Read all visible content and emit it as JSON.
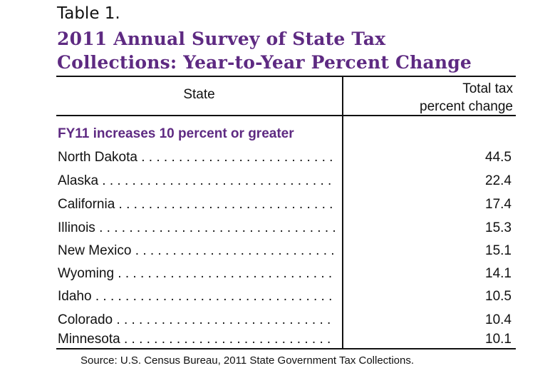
{
  "table_label": "Table 1.",
  "title_line1": "2011 Annual Survey of State Tax",
  "title_line2": "Collections: Year-to-Year Percent Change",
  "headers": {
    "state": "State",
    "value_line1": "Total tax",
    "value_line2": "percent change"
  },
  "section": "FY11 increases 10 percent or greater",
  "rows": [
    {
      "state": "North Dakota",
      "value": "44.5"
    },
    {
      "state": "Alaska",
      "value": "22.4"
    },
    {
      "state": "California",
      "value": "17.4"
    },
    {
      "state": "Illinois",
      "value": "15.3"
    },
    {
      "state": "New Mexico",
      "value": "15.1"
    },
    {
      "state": "Wyoming",
      "value": "14.1"
    },
    {
      "state": "Idaho",
      "value": "10.5"
    },
    {
      "state": "Colorado",
      "value": "10.4"
    },
    {
      "state": "Minnesota",
      "value": "10.1"
    }
  ],
  "source": "Source: U.S. Census Bureau, 2011 State Government Tax Collections.",
  "colors": {
    "accent": "#5e2a82"
  }
}
